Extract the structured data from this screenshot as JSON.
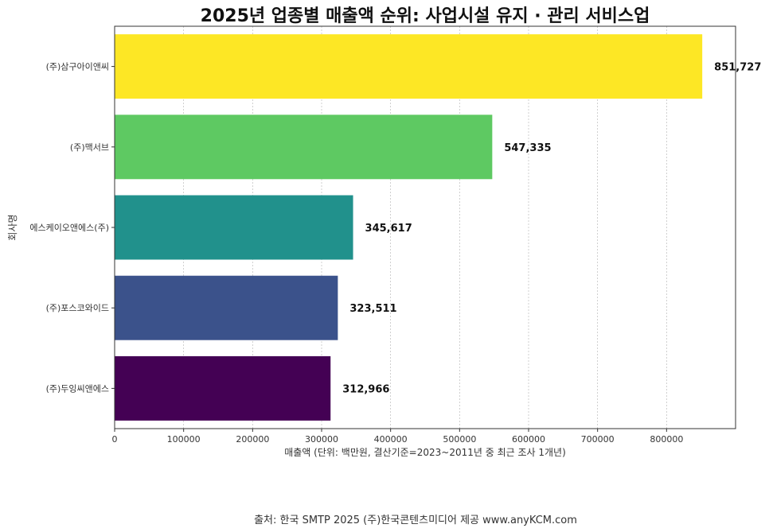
{
  "chart_data": {
    "type": "bar",
    "orientation": "horizontal",
    "title": "2025년 업종별 매출액 순위: 사업시설 유지 · 관리 서비스업",
    "xlabel": "매출액 (단위: 백만원, 결산기준=2023~2011년 중 최근 조사 1개년)",
    "ylabel": "회사명",
    "xlim": [
      0,
      900000
    ],
    "xticks": [
      0,
      100000,
      200000,
      300000,
      400000,
      500000,
      600000,
      700000,
      800000
    ],
    "xtick_labels": [
      "0",
      "100000",
      "200000",
      "300000",
      "400000",
      "500000",
      "600000",
      "700000",
      "800000"
    ],
    "grid": "vertical dotted",
    "categories": [
      "(주)삼구아이앤씨",
      "(주)맥서브",
      "에스케이오앤에스(주)",
      "(주)포스코와이드",
      "(주)두잉씨앤에스"
    ],
    "values": [
      851727,
      547335,
      345617,
      323511,
      312966
    ],
    "value_labels": [
      "851,727",
      "547,335",
      "345,617",
      "323,511",
      "312,966"
    ],
    "colors": [
      "#fde725",
      "#5ec962",
      "#21918c",
      "#3b528b",
      "#440154"
    ]
  },
  "footer": {
    "source": "출처: 한국 SMTP 2025  (주)한국콘텐츠미디어 제공  www.anyKCM.com"
  }
}
